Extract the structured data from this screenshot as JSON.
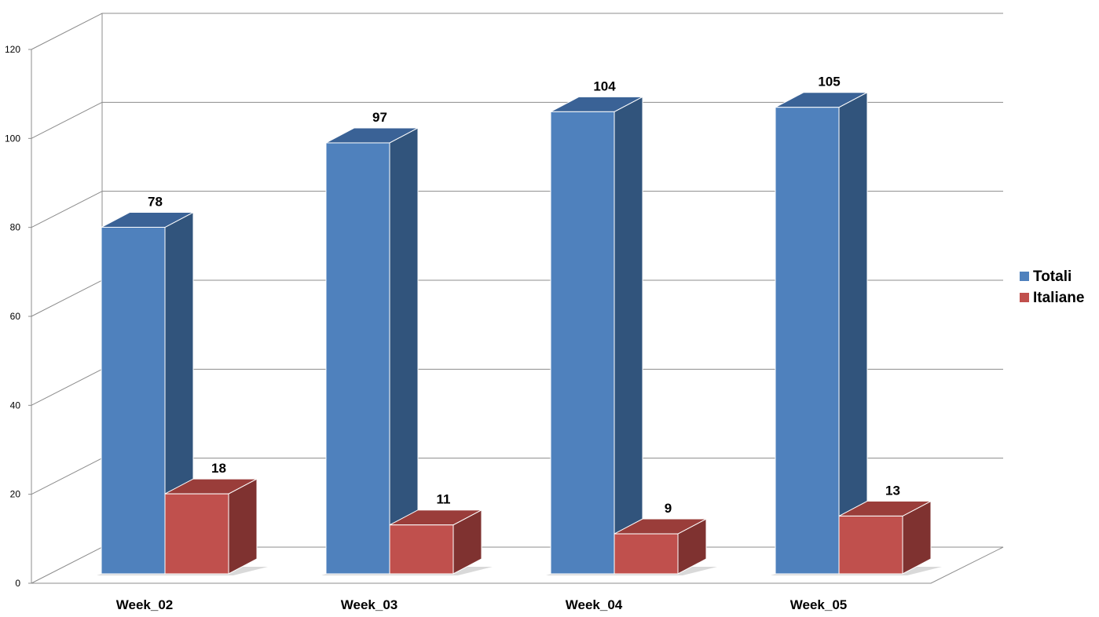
{
  "chart_data": {
    "type": "bar",
    "style": "3d-clustered-column",
    "title": "",
    "xlabel": "",
    "ylabel": "",
    "categories": [
      "Week_02",
      "Week_03",
      "Week_04",
      "Week_05"
    ],
    "series": [
      {
        "name": "Totali",
        "values": [
          78,
          97,
          104,
          105
        ],
        "color": "#4F81BD",
        "side": "#31547C",
        "top": "#3A6296"
      },
      {
        "name": "Italiane",
        "values": [
          18,
          11,
          9,
          13
        ],
        "color": "#C0504D",
        "side": "#7F3230",
        "top": "#9A3D3A"
      }
    ],
    "ylim": [
      0,
      120
    ],
    "yticks": [
      "0",
      "20",
      "40",
      "60",
      "80",
      "100",
      "120"
    ],
    "grid": true,
    "legend": "right",
    "data_labels": true
  }
}
